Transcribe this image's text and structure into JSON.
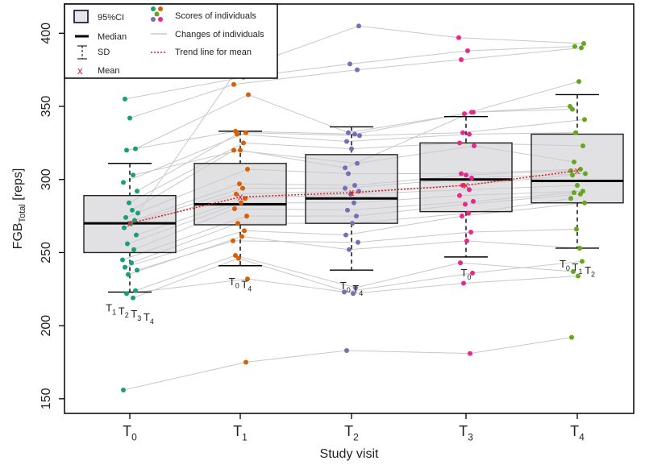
{
  "chart_data": {
    "type": "box",
    "xlabel": "Study visit",
    "ylabel": "FGB",
    "ylabel_sub": "Total",
    "ylabel_unit": " [reps]",
    "ylim": [
      140,
      420
    ],
    "yticks": [
      150,
      200,
      250,
      300,
      350,
      400
    ],
    "categories": [
      {
        "base": "T",
        "sub": "0"
      },
      {
        "base": "T",
        "sub": "1"
      },
      {
        "base": "T",
        "sub": "2"
      },
      {
        "base": "T",
        "sub": "3"
      },
      {
        "base": "T",
        "sub": "4"
      }
    ],
    "colors": [
      "#1a9e77",
      "#d95f02",
      "#7570b3",
      "#e7298a",
      "#66a61e"
    ],
    "legend": {
      "placement": "top-left",
      "ci": "95%CI",
      "median": "Median",
      "sd": "SD",
      "mean": "Mean",
      "scores": "Scores of individuals",
      "changes": "Changes of individuals",
      "trend": "Trend line for mean"
    },
    "boxes": [
      {
        "q1": 250,
        "median": 270,
        "q3": 289,
        "mean": 270,
        "sd_low": 223,
        "sd_high": 311
      },
      {
        "q1": 269,
        "median": 283,
        "q3": 311,
        "mean": 288,
        "sd_low": 241,
        "sd_high": 333
      },
      {
        "q1": 270,
        "median": 287,
        "q3": 317,
        "mean": 291,
        "sd_low": 238,
        "sd_high": 336
      },
      {
        "q1": 278,
        "median": 300,
        "q3": 325,
        "mean": 296,
        "sd_low": 247,
        "sd_high": 343
      },
      {
        "q1": 284,
        "median": 299,
        "q3": 331,
        "mean": 306,
        "sd_low": 253,
        "sd_high": 358
      }
    ],
    "significance": [
      [
        {
          "base": "T",
          "sub": "1"
        },
        {
          "base": "T",
          "sub": "2"
        },
        {
          "base": "T",
          "sub": "3"
        },
        {
          "base": "T",
          "sub": "4"
        }
      ],
      [
        {
          "base": "T",
          "sub": "0"
        },
        {
          "base": "T",
          "sub": "4"
        }
      ],
      [
        {
          "base": "T",
          "sub": "0"
        },
        {
          "base": "T",
          "sub": "4"
        }
      ],
      [
        {
          "base": "T",
          "sub": "0"
        }
      ],
      [
        {
          "base": "T",
          "sub": "0"
        },
        {
          "base": "T",
          "sub": "1"
        },
        {
          "base": "T",
          "sub": "2"
        }
      ]
    ],
    "individuals": [
      [
        156,
        175,
        183,
        181,
        192
      ],
      [
        219,
        246,
        222,
        229,
        234
      ],
      [
        222,
        232,
        223,
        236,
        244
      ],
      [
        224,
        248,
        226,
        243,
        237
      ],
      [
        235,
        261,
        252,
        258,
        253
      ],
      [
        238,
        258,
        257,
        264,
        266
      ],
      [
        240,
        265,
        262,
        275,
        284
      ],
      [
        243,
        270,
        270,
        277,
        287
      ],
      [
        245,
        275,
        275,
        283,
        290
      ],
      [
        252,
        280,
        279,
        285,
        291
      ],
      [
        256,
        284,
        284,
        289,
        292
      ],
      [
        262,
        287,
        290,
        293,
        296
      ],
      [
        267,
        290,
        292,
        296,
        303
      ],
      [
        270,
        294,
        294,
        301,
        304
      ],
      [
        272,
        297,
        296,
        303,
        306
      ],
      [
        274,
        307,
        304,
        304,
        307
      ],
      [
        279,
        320,
        311,
        323,
        312
      ],
      [
        284,
        325,
        321,
        325,
        323
      ],
      [
        292,
        331,
        326,
        331,
        332
      ],
      [
        298,
        332,
        330,
        332,
        341
      ],
      [
        303,
        320,
        308,
        346,
        348
      ],
      [
        320,
        333,
        331,
        345,
        367
      ],
      [
        321,
        358,
        332,
        346,
        350
      ],
      [
        342,
        365,
        375,
        382,
        390
      ],
      [
        355,
        370,
        379,
        388,
        391
      ],
      [
        277,
        375,
        405,
        397,
        393
      ]
    ]
  }
}
